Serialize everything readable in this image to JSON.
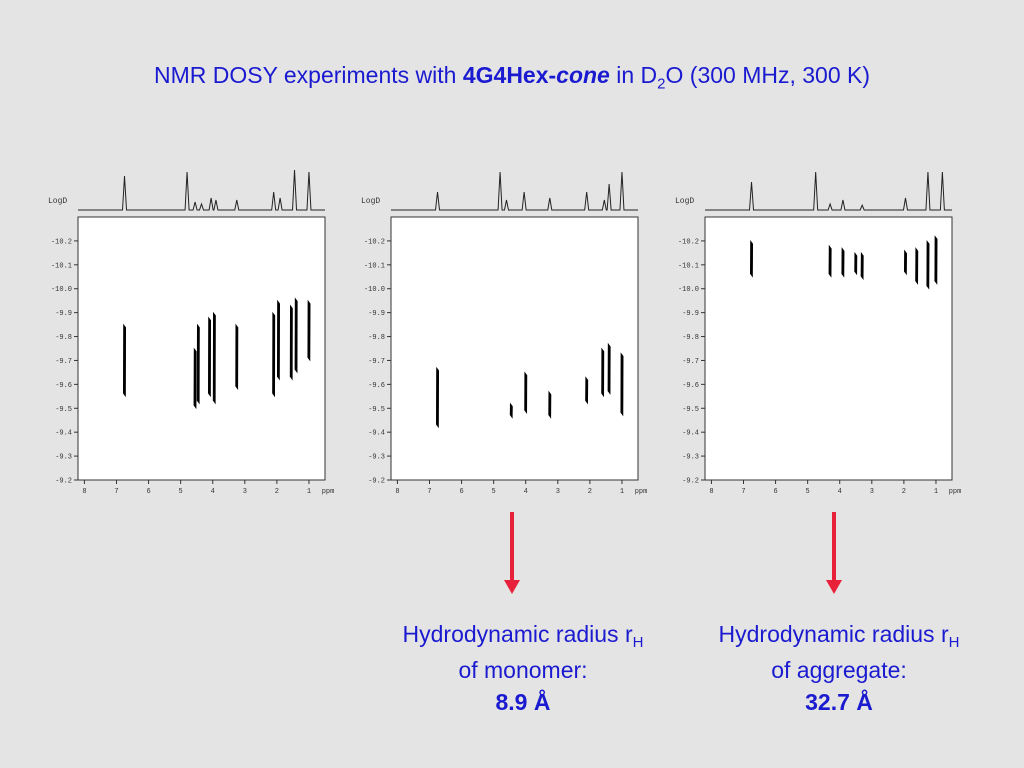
{
  "title": {
    "prefix": "NMR DOSY experiments with ",
    "compound_bold": "4G4Hex-",
    "compound_italic": "cone",
    "middle": " in D",
    "subscript": "2",
    "suffix": "O (300 MHz, 300 K)"
  },
  "captions": [
    {
      "line1": "Hydrodynamic radius r",
      "line1_sub": "H",
      "line2": "of monomer:",
      "value": "8.9 Å"
    },
    {
      "line1": "Hydrodynamic radius r",
      "line1_sub": "H",
      "line2": "of aggregate:",
      "value": "32.7 Å"
    }
  ],
  "colors": {
    "text": "#1a1ad0",
    "arrow": "#e8203a",
    "background": "#e4e4e4"
  },
  "chart_data": [
    {
      "type": "scatter",
      "ylabel": "LogD",
      "xunit": "ppm",
      "xticks": [
        8,
        7,
        6,
        5,
        4,
        3,
        2,
        1
      ],
      "yticks": [
        -10.2,
        -10.1,
        -10.0,
        -9.9,
        -9.8,
        -9.7,
        -9.6,
        -9.5,
        -9.4,
        -9.3,
        -9.2
      ],
      "xlim": [
        8.2,
        0.5
      ],
      "ylim": [
        -9.2,
        -10.3
      ],
      "peaks_1d": [
        6.75,
        4.8,
        4.55,
        4.35,
        4.05,
        3.9,
        3.25,
        2.1,
        1.9,
        1.45,
        1.0
      ],
      "peak_heights": [
        0.85,
        0.95,
        0.2,
        0.15,
        0.3,
        0.25,
        0.25,
        0.45,
        0.3,
        1.0,
        0.95
      ],
      "dosy_signals": [
        {
          "ppm": 6.75,
          "logd": [
            -9.55,
            -9.85
          ]
        },
        {
          "ppm": 4.55,
          "logd": [
            -9.5,
            -9.75
          ]
        },
        {
          "ppm": 4.45,
          "logd": [
            -9.52,
            -9.85
          ]
        },
        {
          "ppm": 4.1,
          "logd": [
            -9.55,
            -9.88
          ]
        },
        {
          "ppm": 3.95,
          "logd": [
            -9.52,
            -9.9
          ]
        },
        {
          "ppm": 3.25,
          "logd": [
            -9.58,
            -9.85
          ]
        },
        {
          "ppm": 2.1,
          "logd": [
            -9.55,
            -9.9
          ]
        },
        {
          "ppm": 1.95,
          "logd": [
            -9.62,
            -9.95
          ]
        },
        {
          "ppm": 1.55,
          "logd": [
            -9.62,
            -9.93
          ]
        },
        {
          "ppm": 1.4,
          "logd": [
            -9.65,
            -9.96
          ]
        },
        {
          "ppm": 1.0,
          "logd": [
            -9.7,
            -9.95
          ]
        }
      ]
    },
    {
      "type": "scatter",
      "ylabel": "LogD",
      "xunit": "ppm",
      "xticks": [
        8,
        7,
        6,
        5,
        4,
        3,
        2,
        1
      ],
      "yticks": [
        -10.2,
        -10.1,
        -10.0,
        -9.9,
        -9.8,
        -9.7,
        -9.6,
        -9.5,
        -9.4,
        -9.3,
        -9.2
      ],
      "xlim": [
        8.2,
        0.5
      ],
      "ylim": [
        -9.2,
        -10.3
      ],
      "peaks_1d": [
        6.75,
        4.8,
        4.6,
        4.05,
        3.25,
        2.1,
        1.55,
        1.4,
        1.0
      ],
      "peak_heights": [
        0.45,
        0.95,
        0.25,
        0.45,
        0.3,
        0.45,
        0.25,
        0.65,
        0.95
      ],
      "dosy_signals": [
        {
          "ppm": 6.75,
          "logd": [
            -9.42,
            -9.67
          ]
        },
        {
          "ppm": 4.45,
          "logd": [
            -9.46,
            -9.52
          ]
        },
        {
          "ppm": 4.0,
          "logd": [
            -9.48,
            -9.65
          ]
        },
        {
          "ppm": 3.25,
          "logd": [
            -9.46,
            -9.57
          ]
        },
        {
          "ppm": 2.1,
          "logd": [
            -9.52,
            -9.63
          ]
        },
        {
          "ppm": 1.6,
          "logd": [
            -9.55,
            -9.75
          ]
        },
        {
          "ppm": 1.4,
          "logd": [
            -9.56,
            -9.77
          ]
        },
        {
          "ppm": 1.0,
          "logd": [
            -9.47,
            -9.73
          ]
        }
      ]
    },
    {
      "type": "scatter",
      "ylabel": "LogD",
      "xunit": "ppm",
      "xticks": [
        8,
        7,
        6,
        5,
        4,
        3,
        2,
        1
      ],
      "yticks": [
        -10.2,
        -10.1,
        -10.0,
        -9.9,
        -9.8,
        -9.7,
        -9.6,
        -9.5,
        -9.4,
        -9.3,
        -9.2
      ],
      "xlim": [
        8.2,
        0.5
      ],
      "ylim": [
        -9.2,
        -10.3
      ],
      "peaks_1d": [
        6.75,
        4.75,
        4.3,
        3.9,
        3.3,
        1.95,
        1.25,
        0.8
      ],
      "peak_heights": [
        0.7,
        0.95,
        0.15,
        0.25,
        0.12,
        0.3,
        0.95,
        0.95
      ],
      "dosy_signals": [
        {
          "ppm": 6.75,
          "logd": [
            -10.05,
            -10.2
          ]
        },
        {
          "ppm": 4.3,
          "logd": [
            -10.05,
            -10.18
          ]
        },
        {
          "ppm": 3.9,
          "logd": [
            -10.05,
            -10.17
          ]
        },
        {
          "ppm": 3.5,
          "logd": [
            -10.06,
            -10.15
          ]
        },
        {
          "ppm": 3.3,
          "logd": [
            -10.04,
            -10.15
          ]
        },
        {
          "ppm": 1.95,
          "logd": [
            -10.06,
            -10.16
          ]
        },
        {
          "ppm": 1.6,
          "logd": [
            -10.02,
            -10.17
          ]
        },
        {
          "ppm": 1.25,
          "logd": [
            -10.0,
            -10.2
          ]
        },
        {
          "ppm": 1.0,
          "logd": [
            -10.02,
            -10.22
          ]
        }
      ]
    }
  ]
}
